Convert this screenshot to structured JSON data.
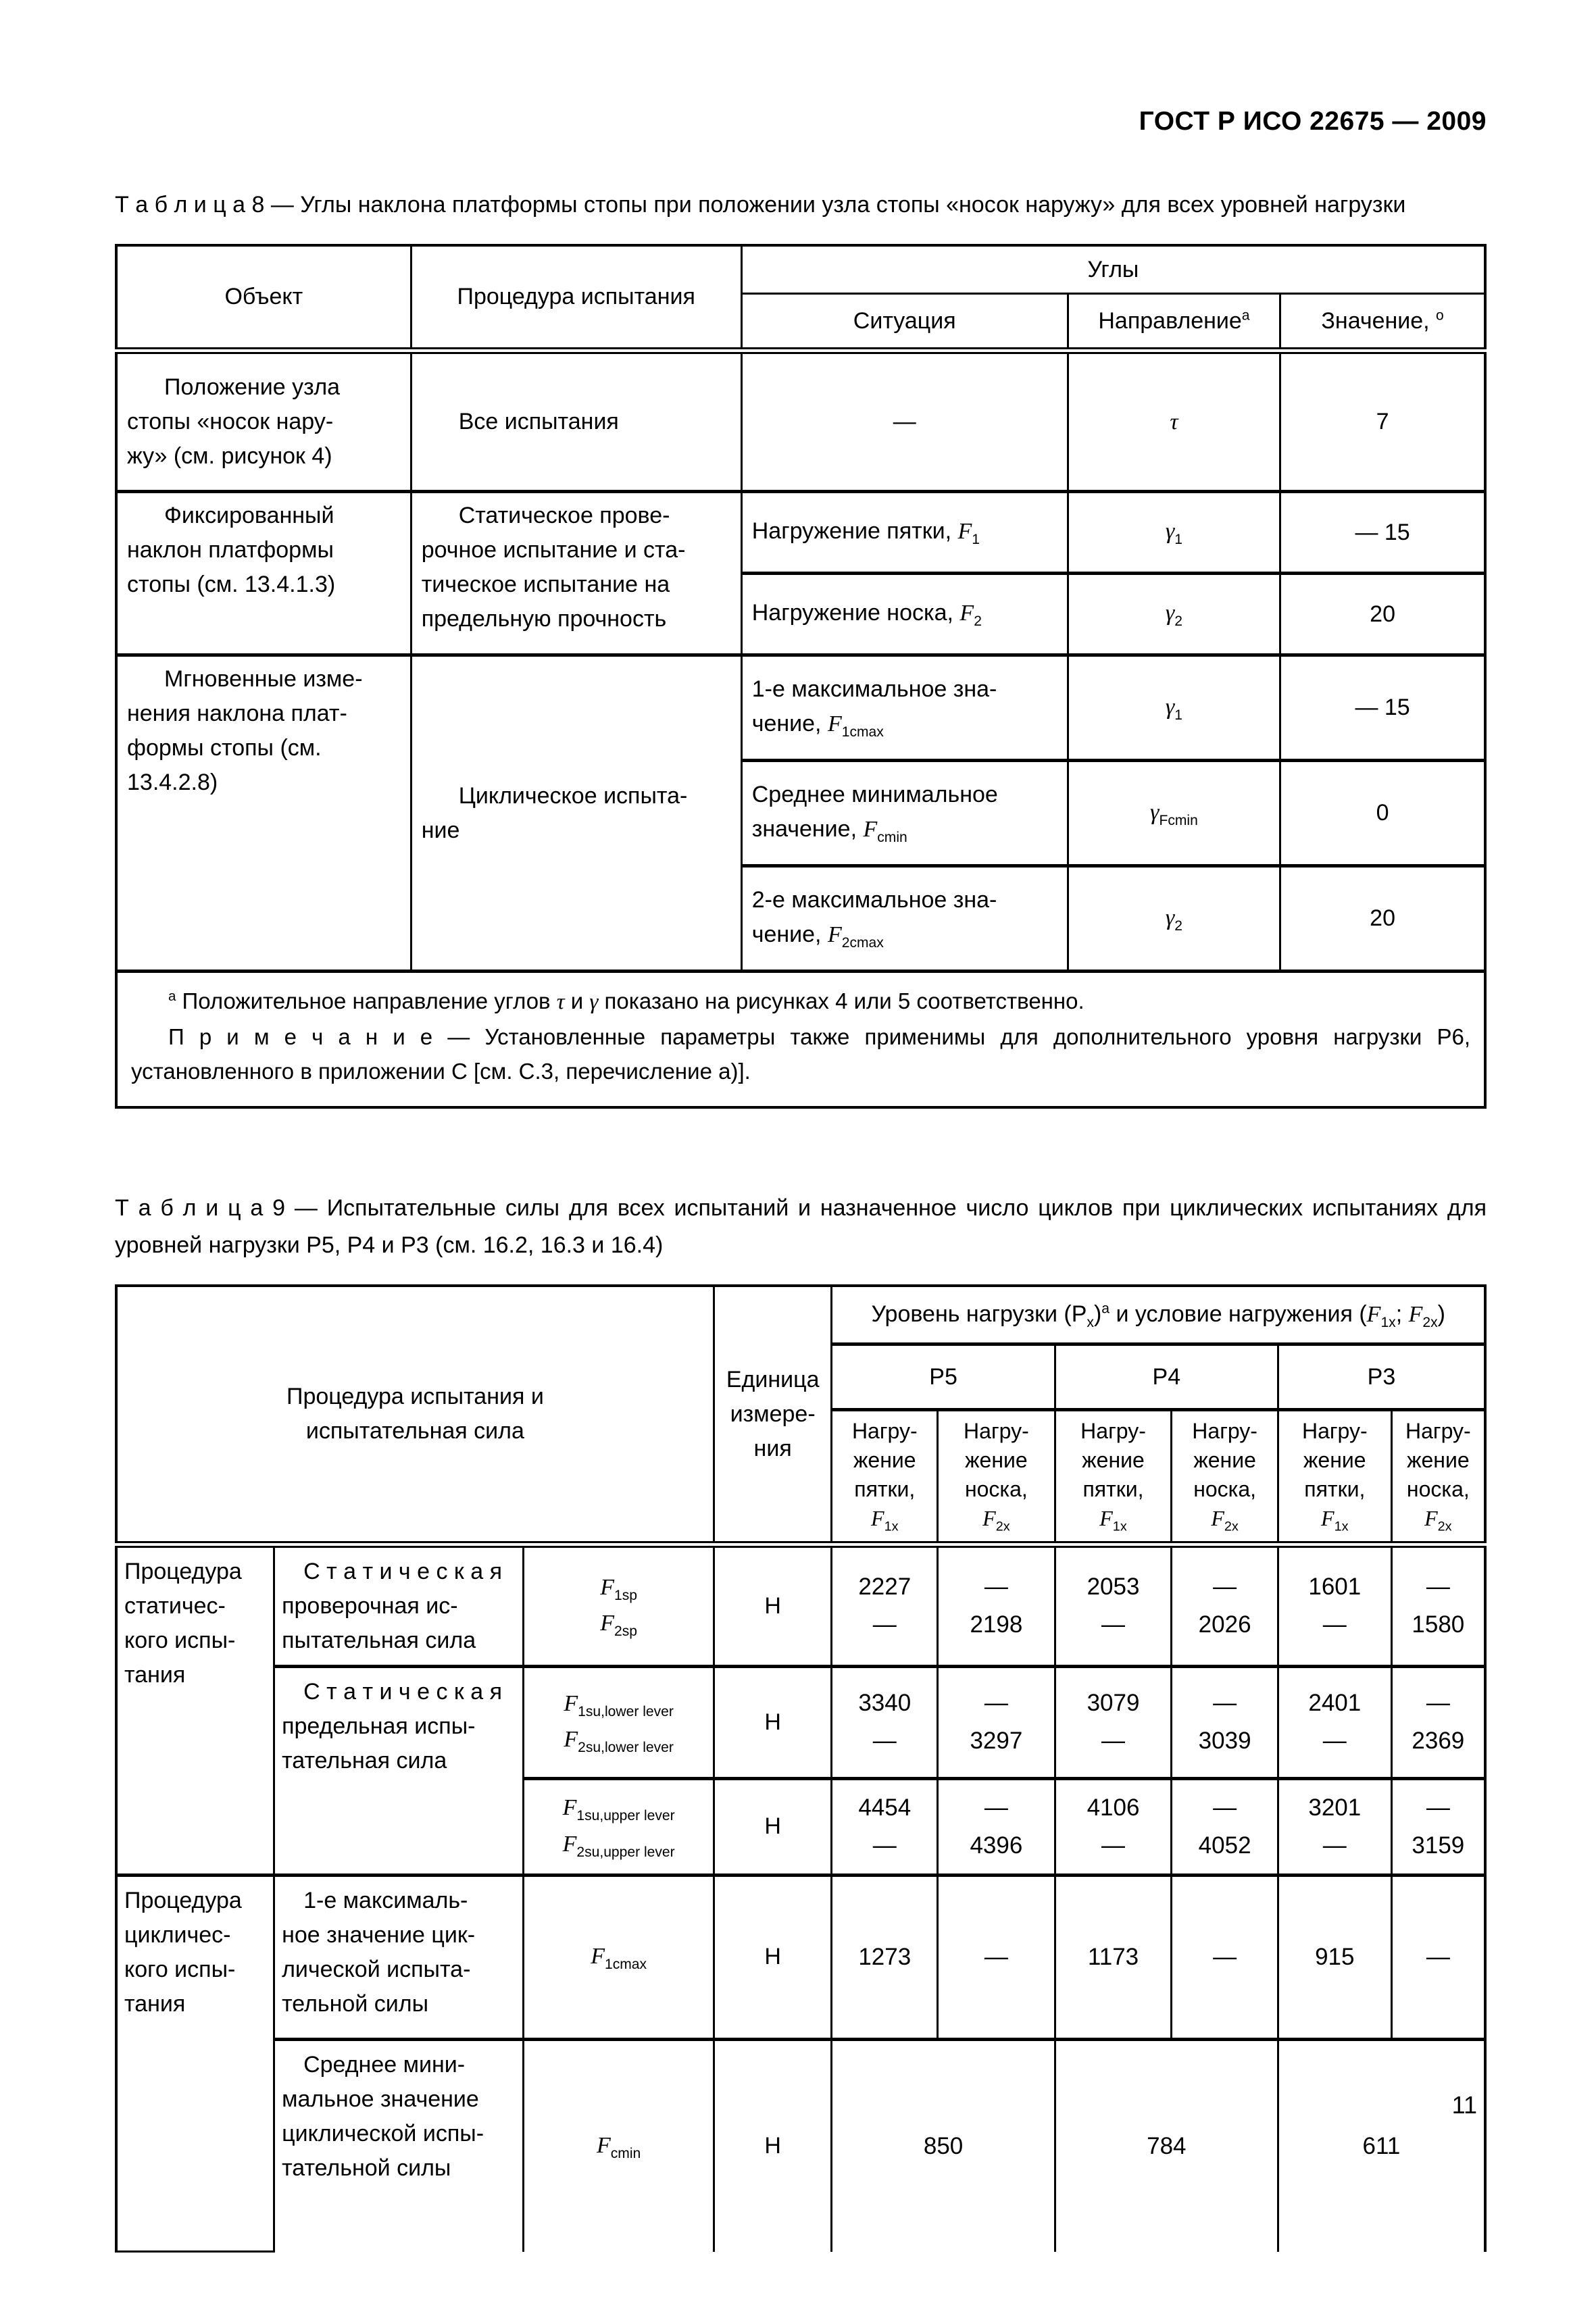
{
  "page": {
    "doc_code": "ГОСТ Р ИСО 22675 — 2009",
    "page_number": "11"
  },
  "table8": {
    "caption_label": "Т а б л и ц а  8",
    "caption_text": "— Углы наклона платформы стопы при положении узла стопы «носок наружу» для всех уровней нагрузки",
    "head": {
      "object": "Объект",
      "procedure": "Процедура испытания",
      "angles": "Углы",
      "situation": "Ситуация",
      "direction_html": "Направление<sup>а</sup>",
      "value_html": "Значение, <sup>о</sup>"
    },
    "rows": {
      "r1": {
        "object": "Положение узла\nстопы «носок нару-\nжу» (см. рисунок 4)",
        "procedure": "Все испытания",
        "situation": "—",
        "direction_html": "<i>τ</i>",
        "value": "7"
      },
      "r2": {
        "object": "Фиксированный\nнаклон платформы\nстопы (см. 13.4.1.3)",
        "procedure": "Статическое прове-\nрочное испытание и ста-\nтическое испытание на\nпредельную прочность",
        "sub": [
          {
            "situation_html": "Нагружение пятки, <i>F</i><sub>1</sub>",
            "direction_html": "<i>γ</i><sub>1</sub>",
            "value": "— 15"
          },
          {
            "situation_html": "Нагружение носка, <i>F</i><sub>2</sub>",
            "direction_html": "<i>γ</i><sub>2</sub>",
            "value": "20"
          }
        ]
      },
      "r3": {
        "object": "Мгновенные изме-\nнения наклона плат-\nформы стопы (см.\n13.4.2.8)",
        "procedure": "Циклическое испыта-\nние",
        "sub": [
          {
            "situation_html": "1-е максимальное зна-<br>чение, <i>F</i><sub>1cmax</sub>",
            "direction_html": "<i>γ</i><sub>1</sub>",
            "value": "— 15"
          },
          {
            "situation_html": "Среднее минимальное<br>значение, <i>F</i><sub>cmin</sub>",
            "direction_html": "<i>γ</i><sub>Fcmin</sub>",
            "value": "0"
          },
          {
            "situation_html": "2-е максимальное зна-<br>чение, <i>F</i><sub>2cmax</sub>",
            "direction_html": "<i>γ</i><sub>2</sub>",
            "value": "20"
          }
        ]
      }
    },
    "footnote_html": "<sup>а</sup> Положительное направление углов <i>τ</i> и <i>γ</i> показано на рисунках 4 или 5 соответственно.",
    "note_html": "П р и м е ч а н и е — Установленные параметры также применимы для дополнительного уровня нагрузки Р6, установленного в приложении С [см. С.3, перечисление а)]."
  },
  "table9": {
    "caption_label": "Т а б л и ц а  9",
    "caption_text": "— Испытательные силы для всех испытаний и назначенное число циклов при циклических испытаниях для уровней нагрузки Р5, Р4 и Р3 (см. 16.2, 16.3 и 16.4)",
    "head": {
      "procedure": "Процедура испытания и\nиспытательная сила",
      "unit": "Единица\nизмере-\nния",
      "load_level_html": "Уровень нагрузки (Р<sub>х</sub>)<sup>а</sup> и условие нагружения (<i>F</i><sub>1х</sub>; <i>F</i><sub>2х</sub>)",
      "levels": [
        "Р5",
        "Р4",
        "Р3"
      ],
      "heel_html": "Нагру-<br>жение<br>пятки,<br><i>F</i><sub>1х</sub>",
      "toe_html": "Нагру-<br>жение<br>носка,<br><i>F</i><sub>2х</sub>"
    },
    "rows": {
      "static_group": "Процедура\nстатичес-\nкого испы-\nтания",
      "cyclic_group": "Процедура\nцикличес-\nкого испы-\nтания",
      "rA": {
        "desc": "С т а т и ч е с к а я\nпроверочная ис-\nпытательная сила",
        "symbol_html": "<i>F</i><sub>1sp</sub><br><i>F</i><sub>2sp</sub>",
        "unit": "Н",
        "values_html": [
          "2227<br>—",
          "—<br>2198",
          "2053<br>—",
          "—<br>2026",
          "1601<br>—",
          "—<br>1580"
        ]
      },
      "rB": {
        "desc": "С т а т и ч е с к а я\nпредельная испы-\nтательная сила",
        "symbol_html": "<i>F</i><sub>1su,lower lever</sub><br><i>F</i><sub>2su,lower lever</sub>",
        "unit": "Н",
        "values_html": [
          "3340<br>—",
          "—<br>3297",
          "3079<br>—",
          "—<br>3039",
          "2401<br>—",
          "—<br>2369"
        ]
      },
      "rC": {
        "symbol_html": "<i>F</i><sub>1su,upper lever</sub><br><i>F</i><sub>2su,upper lever</sub>",
        "unit": "Н",
        "values_html": [
          "4454<br>—",
          "—<br>4396",
          "4106<br>—",
          "—<br>4052",
          "3201<br>—",
          "—<br>3159"
        ]
      },
      "rD": {
        "desc": "1-е максималь-\nное значение цик-\nлической испыта-\nтельной силы",
        "symbol_html": "<i>F</i><sub>1cmax</sub>",
        "unit": "Н",
        "values": [
          "1273",
          "—",
          "1173",
          "—",
          "915",
          "—"
        ]
      },
      "rE": {
        "desc": "Среднее мини-\nмальное значение\nциклической испы-\nтательной силы",
        "symbol_html": "<i>F</i><sub>cmin</sub>",
        "unit": "Н",
        "values": [
          "850",
          "784",
          "611"
        ]
      }
    }
  }
}
